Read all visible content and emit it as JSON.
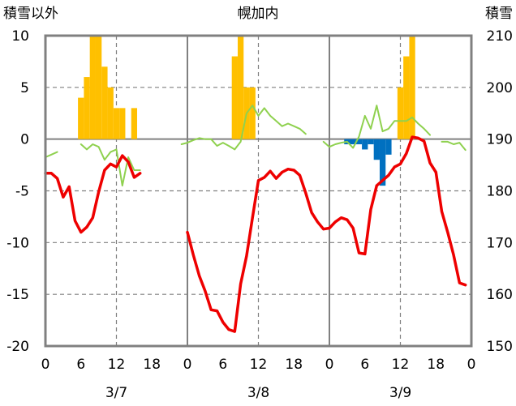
{
  "chart_data": {
    "type": "bar+line",
    "title": "幌加内",
    "ylabel_left": "積雪以外",
    "ylabel_right": "積雪",
    "ylim_left": [
      -20,
      10
    ],
    "yticks_left": [
      "10",
      "5",
      "0",
      "-5",
      "-10",
      "-15",
      "-20"
    ],
    "ylim_right": [
      150,
      210
    ],
    "yticks_right": [
      "210",
      "200",
      "190",
      "180",
      "170",
      "160",
      "150"
    ],
    "xlim_hours": [
      0,
      72
    ],
    "day_labels": [
      "3/7",
      "3/8",
      "3/9"
    ],
    "hour_ticks": [
      "0",
      "6",
      "12",
      "18",
      "0",
      "6",
      "12",
      "18",
      "0",
      "6",
      "12",
      "18",
      "0"
    ],
    "grid": true,
    "colors": {
      "temperature": "#ee0000",
      "snow_depth": "#8fd14f",
      "snowfall": "#ffc000",
      "precip_negative": "#0070c0",
      "grid": "#808080",
      "frame": "#808080"
    },
    "series": [
      {
        "key": "temperature",
        "axis": "left",
        "x": [
          0,
          1,
          2,
          3,
          4,
          5,
          6,
          7,
          8,
          9,
          10,
          11,
          12,
          13,
          14,
          15,
          16,
          null,
          24,
          25,
          26,
          27,
          28,
          29,
          30,
          31,
          32,
          33,
          34,
          35,
          36,
          37,
          38,
          39,
          40,
          41,
          42,
          43,
          44,
          45,
          46,
          47,
          48,
          49,
          50,
          51,
          52,
          53,
          54,
          55,
          56,
          57,
          58,
          59,
          60,
          61,
          62,
          63,
          64,
          65,
          66,
          67,
          68,
          69,
          70,
          71
        ],
        "values": [
          -3.3,
          -3.3,
          -3.8,
          -5.6,
          -4.6,
          -7.9,
          -9.0,
          -8.5,
          -7.6,
          -5.1,
          -3.0,
          -2.4,
          -2.7,
          -1.6,
          -2.2,
          -3.7,
          -3.3,
          null,
          -9.0,
          -11.2,
          -13.2,
          -14.7,
          -16.5,
          -16.6,
          -17.7,
          -18.4,
          -18.6,
          -14.0,
          -11.3,
          -7.6,
          -4.0,
          -3.7,
          -3.1,
          -3.8,
          -3.2,
          -2.9,
          -3.0,
          -3.5,
          -5.2,
          -7.1,
          -8.0,
          -8.7,
          -8.6,
          -8.0,
          -7.6,
          -7.8,
          -8.6,
          -11.0,
          -11.1,
          -6.8,
          -4.5,
          -4.0,
          -3.5,
          -2.7,
          -2.4,
          -1.4,
          0.2,
          0.1,
          -0.2,
          -2.3,
          -3.2,
          -7.0,
          -9.0,
          -11.2,
          -13.9,
          -14.1
        ]
      },
      {
        "key": "snow_depth",
        "axis": "right",
        "x": [
          0,
          1,
          2,
          null,
          6,
          7,
          8,
          9,
          10,
          11,
          12,
          13,
          14,
          15,
          16,
          null,
          23,
          24,
          25,
          26,
          27,
          28,
          29,
          30,
          31,
          32,
          33,
          34,
          35,
          36,
          37,
          38,
          39,
          40,
          41,
          42,
          43,
          44,
          45,
          46,
          null,
          47,
          48,
          49,
          50,
          51,
          52,
          53,
          54,
          55,
          56,
          57,
          58,
          59,
          60,
          61,
          62,
          63,
          64,
          65,
          66,
          67,
          68,
          69,
          70,
          71
        ],
        "values": [
          186.5,
          187.0,
          187.5,
          null,
          189.0,
          188.0,
          189.0,
          188.5,
          186.0,
          187.5,
          188.0,
          181.0,
          186.5,
          184.0,
          184.0,
          null,
          189.0,
          189.3,
          189.8,
          190.2,
          190.0,
          190.0,
          188.7,
          189.3,
          188.7,
          188.0,
          189.5,
          195.0,
          196.5,
          194.5,
          196.0,
          194.5,
          193.5,
          192.5,
          193.0,
          192.5,
          192.0,
          191.0,
          null,
          null,
          null,
          189.5,
          188.5,
          189.0,
          189.3,
          189.5,
          188.3,
          190.5,
          194.5,
          192.0,
          196.5,
          191.5,
          192.0,
          193.5,
          193.5,
          193.5,
          194.2,
          193.0,
          192.0,
          190.8,
          null,
          189.5,
          189.5,
          189.0,
          189.3,
          187.9
        ]
      },
      {
        "key": "snowfall",
        "axis": "left",
        "x": [
          6,
          7,
          8,
          9,
          10,
          11,
          12,
          13,
          14,
          15,
          32,
          33,
          34,
          35,
          36,
          60,
          61,
          62,
          63,
          64
        ],
        "values": [
          4,
          6,
          10,
          10,
          7,
          5,
          3,
          3,
          0,
          3,
          8,
          10,
          5,
          5,
          0,
          5,
          8,
          10,
          0,
          0
        ]
      },
      {
        "key": "precip_negative",
        "axis": "left",
        "x": [
          51,
          52,
          53,
          54,
          55,
          56,
          57,
          58
        ],
        "values": [
          -0.5,
          -0.5,
          -0.5,
          -1.0,
          -0.5,
          -2.0,
          -4.5,
          -1.5
        ]
      }
    ]
  }
}
